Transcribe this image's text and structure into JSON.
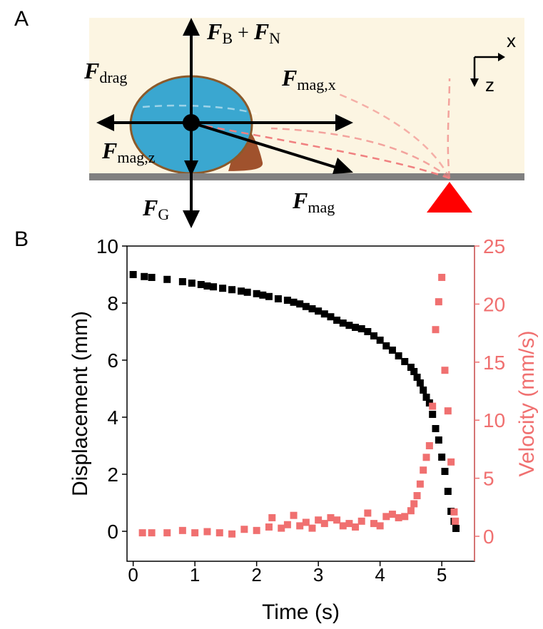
{
  "panel_a": {
    "label": "A",
    "axes": {
      "x": "x",
      "z": "z"
    },
    "labels": [
      {
        "parts": [
          {
            "text": "F",
            "style": "symbol"
          },
          {
            "text": "B",
            "style": "sub"
          },
          {
            "text": " + ",
            "style": "plain"
          },
          {
            "text": "F",
            "style": "symbol"
          },
          {
            "text": "N",
            "style": "sub"
          }
        ]
      },
      {
        "parts": [
          {
            "text": "F",
            "style": "symbol"
          },
          {
            "text": "drag",
            "style": "sub"
          }
        ]
      },
      {
        "parts": [
          {
            "text": "F",
            "style": "symbol"
          },
          {
            "text": "mag,x",
            "style": "sub"
          }
        ]
      },
      {
        "parts": [
          {
            "text": "F",
            "style": "symbol"
          },
          {
            "text": "mag,z",
            "style": "sub"
          }
        ]
      },
      {
        "parts": [
          {
            "text": "F",
            "style": "symbol"
          },
          {
            "text": "G",
            "style": "sub"
          }
        ]
      },
      {
        "parts": [
          {
            "text": "F",
            "style": "symbol"
          },
          {
            "text": "mag",
            "style": "sub"
          }
        ]
      }
    ]
  },
  "panel_b": {
    "label": "B"
  },
  "chart_data": {
    "type": "scatter",
    "x_label": "Time (s)",
    "y_label": "Displacement (mm)",
    "y2_label": "Velocity (mm/s)",
    "xlim": [
      -0.1,
      5.53
    ],
    "xticks": [
      0,
      1,
      2,
      3,
      4,
      5
    ],
    "ylim": [
      -1.05,
      10
    ],
    "yticks": [
      0,
      2,
      4,
      6,
      8,
      10
    ],
    "y2lim": [
      -2.15,
      25
    ],
    "y2ticks": [
      0,
      5,
      10,
      15,
      20,
      25
    ],
    "series": [
      {
        "color": "#000000",
        "axis": "y",
        "x": [
          0,
          0.18,
          0.3,
          0.55,
          0.8,
          0.95,
          1.1,
          1.2,
          1.3,
          1.45,
          1.6,
          1.75,
          1.85,
          2.0,
          2.1,
          2.2,
          2.35,
          2.5,
          2.6,
          2.7,
          2.8,
          2.9,
          3.0,
          3.1,
          3.2,
          3.3,
          3.4,
          3.5,
          3.6,
          3.7,
          3.8,
          3.9,
          4.0,
          4.1,
          4.2,
          4.3,
          4.4,
          4.5,
          4.55,
          4.6,
          4.65,
          4.7,
          4.75,
          4.8,
          4.85,
          4.9,
          4.95,
          5.0,
          5.05,
          5.1,
          5.15,
          5.2,
          5.23
        ],
        "values": [
          9.0,
          8.93,
          8.9,
          8.83,
          8.75,
          8.7,
          8.65,
          8.6,
          8.57,
          8.52,
          8.47,
          8.42,
          8.38,
          8.33,
          8.28,
          8.23,
          8.15,
          8.1,
          8.03,
          7.97,
          7.88,
          7.8,
          7.72,
          7.62,
          7.52,
          7.4,
          7.3,
          7.22,
          7.15,
          7.1,
          7.0,
          6.85,
          6.7,
          6.5,
          6.35,
          6.15,
          5.95,
          5.75,
          5.6,
          5.4,
          5.2,
          4.95,
          4.7,
          4.5,
          4.1,
          3.6,
          3.2,
          2.6,
          2.1,
          1.4,
          0.7,
          0.35,
          0.1
        ]
      },
      {
        "color": "#f07070",
        "axis": "y2",
        "x": [
          0.15,
          0.3,
          0.55,
          0.8,
          1.0,
          1.2,
          1.4,
          1.6,
          1.8,
          2.0,
          2.2,
          2.25,
          2.4,
          2.5,
          2.6,
          2.7,
          2.8,
          2.9,
          3.0,
          3.1,
          3.2,
          3.3,
          3.4,
          3.5,
          3.6,
          3.7,
          3.8,
          3.9,
          4.0,
          4.1,
          4.2,
          4.3,
          4.4,
          4.5,
          4.55,
          4.6,
          4.65,
          4.7,
          4.75,
          4.8,
          4.85,
          4.9,
          4.95,
          5.0,
          5.05,
          5.1,
          5.15,
          5.2,
          5.22
        ],
        "values": [
          0.3,
          0.3,
          0.3,
          0.5,
          0.3,
          0.4,
          0.3,
          0.2,
          0.6,
          0.5,
          0.8,
          1.6,
          0.7,
          1.0,
          1.8,
          0.9,
          1.2,
          0.7,
          1.4,
          1.1,
          1.6,
          1.4,
          0.9,
          1.1,
          0.8,
          1.3,
          2.0,
          1.1,
          0.9,
          1.7,
          1.9,
          1.6,
          1.7,
          2.2,
          2.8,
          3.5,
          4.5,
          5.7,
          6.8,
          7.8,
          11.2,
          17.8,
          20.2,
          22.3,
          14.3,
          10.8,
          6.4,
          2.1,
          1.3
        ]
      }
    ]
  }
}
